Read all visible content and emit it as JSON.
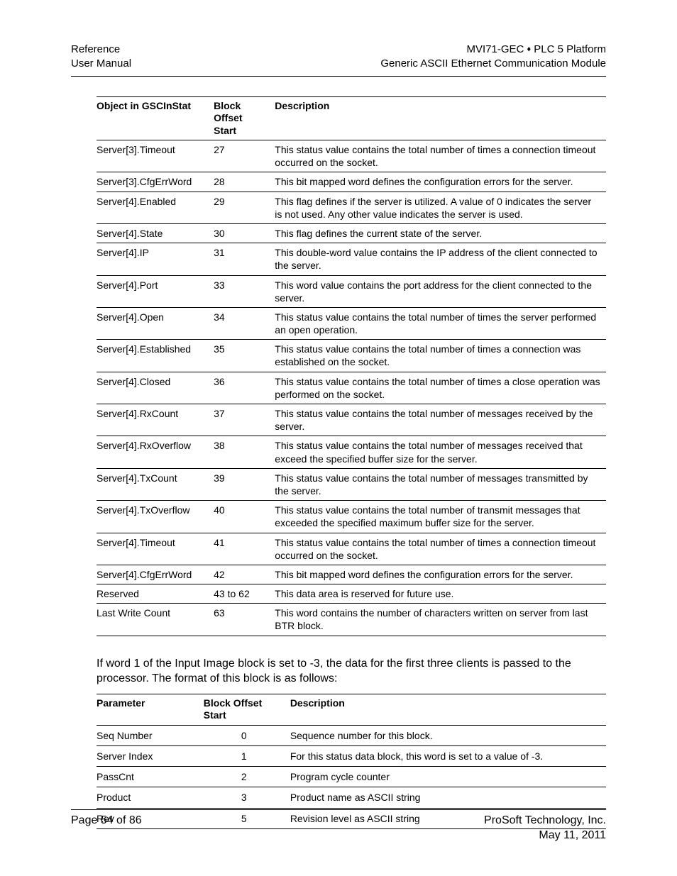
{
  "header": {
    "left_line1": "Reference",
    "left_line2": "User Manual",
    "right_line1_a": "MVI71-GEC ",
    "right_line1_sep": "♦",
    "right_line1_b": " PLC 5 Platform",
    "right_line2": "Generic ASCII Ethernet Communication Module"
  },
  "table1": {
    "head": {
      "c1": "Object in GSCInStat",
      "c2a": "Block",
      "c2b": "Offset",
      "c2c": "Start",
      "c3": "Description"
    },
    "rows": [
      {
        "c1": "Server[3].Timeout",
        "c2": "27",
        "c3": "This status value contains the total number of times a connection timeout occurred on the socket."
      },
      {
        "c1": "Server[3].CfgErrWord",
        "c2": "28",
        "c3": "This bit mapped word defines the configuration errors for the server."
      },
      {
        "c1": "Server[4].Enabled",
        "c2": "29",
        "c3": "This flag defines if the server is utilized. A value of 0 indicates the server is not used. Any other value indicates the server is used."
      },
      {
        "c1": "Server[4].State",
        "c2": "30",
        "c3": "This flag defines the current state of the server."
      },
      {
        "c1": "Server[4].IP",
        "c2": "31",
        "c3": "This double-word value contains the IP address of the client connected to the server."
      },
      {
        "c1": "Server[4].Port",
        "c2": "33",
        "c3": "This word value contains the port address for the client connected to the server."
      },
      {
        "c1": "Server[4].Open",
        "c2": "34",
        "c3": "This status value contains the total number of times the server performed an open operation."
      },
      {
        "c1": "Server[4].Established",
        "c2": "35",
        "c3": "This status value contains the total number of times a connection was established on the socket."
      },
      {
        "c1": "Server[4].Closed",
        "c2": "36",
        "c3": "This status value contains the total number of times a close operation was performed on the socket."
      },
      {
        "c1": "Server[4].RxCount",
        "c2": "37",
        "c3": "This status value contains the total number of messages received by the server."
      },
      {
        "c1": "Server[4].RxOverflow",
        "c2": "38",
        "c3": "This status value contains the total number of messages received that exceed the specified buffer size for the server."
      },
      {
        "c1": "Server[4].TxCount",
        "c2": "39",
        "c3": "This status value contains the total number of messages transmitted by the server."
      },
      {
        "c1": "Server[4].TxOverflow",
        "c2": "40",
        "c3": "This status value contains the total number of transmit messages that exceeded the specified maximum buffer size for the server."
      },
      {
        "c1": "Server[4].Timeout",
        "c2": "41",
        "c3": "This status value contains the total number of times a connection timeout occurred on the socket."
      },
      {
        "c1": "Server[4].CfgErrWord",
        "c2": "42",
        "c3": "This bit mapped word defines the configuration errors for the server."
      },
      {
        "c1": "Reserved",
        "c2": "43 to 62",
        "c3": "This data area is reserved for future use."
      },
      {
        "c1": "Last Write Count",
        "c2": "63",
        "c3": "This word contains the number of characters written on server from last BTR block."
      }
    ]
  },
  "paragraph": "If word 1 of the Input Image block is set to -3, the data for the first three clients is passed to the processor. The format of this block is as follows:",
  "table2": {
    "head": {
      "c1": "Parameter",
      "c2a": "Block Offset",
      "c2b": "Start",
      "c3": "Description"
    },
    "rows": [
      {
        "c1": "Seq Number",
        "c2": "0",
        "c3": "Sequence number for this block."
      },
      {
        "c1": "Server Index",
        "c2": "1",
        "c3": "For this status data block, this word is set to a value of -3."
      },
      {
        "c1": "PassCnt",
        "c2": "2",
        "c3": "Program cycle counter"
      },
      {
        "c1": "Product",
        "c2": "3",
        "c3": "Product name as ASCII string"
      },
      {
        "c1": "Rev",
        "c2": "5",
        "c3": "Revision level as ASCII string"
      }
    ]
  },
  "footer": {
    "left": "Page 54 of 86",
    "right_line1": "ProSoft Technology, Inc.",
    "right_line2": "May 11, 2011"
  }
}
